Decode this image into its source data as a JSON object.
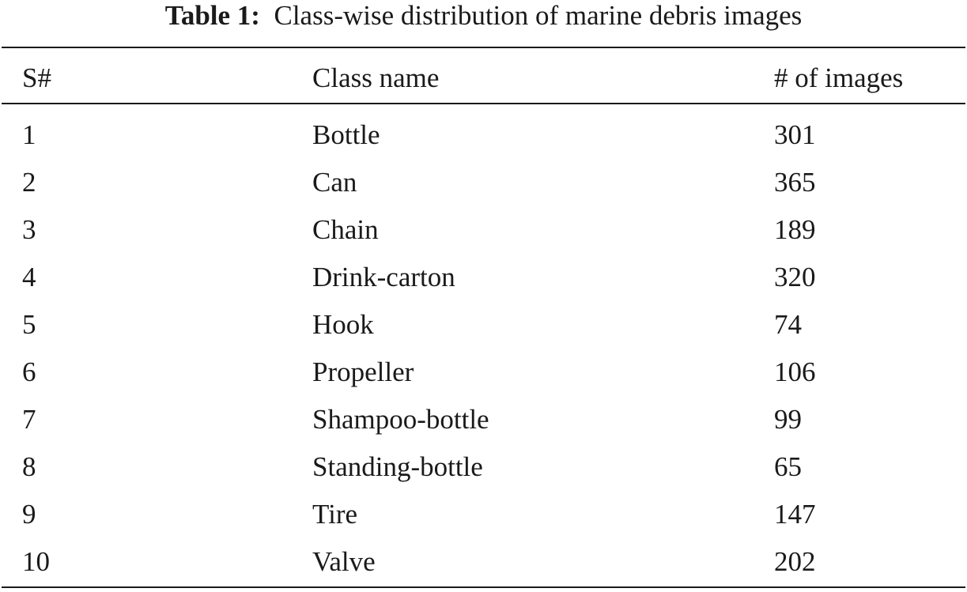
{
  "caption": {
    "label": "Table 1:",
    "text": "Class-wise distribution of marine debris images"
  },
  "table": {
    "headers": [
      "S#",
      "Class name",
      "# of images"
    ],
    "rows": [
      [
        "1",
        "Bottle",
        "301"
      ],
      [
        "2",
        "Can",
        "365"
      ],
      [
        "3",
        "Chain",
        "189"
      ],
      [
        "4",
        "Drink-carton",
        "320"
      ],
      [
        "5",
        "Hook",
        "74"
      ],
      [
        "6",
        "Propeller",
        "106"
      ],
      [
        "7",
        "Shampoo-bottle",
        "99"
      ],
      [
        "8",
        "Standing-bottle",
        "65"
      ],
      [
        "9",
        "Tire",
        "147"
      ],
      [
        "10",
        "Valve",
        "202"
      ]
    ]
  }
}
